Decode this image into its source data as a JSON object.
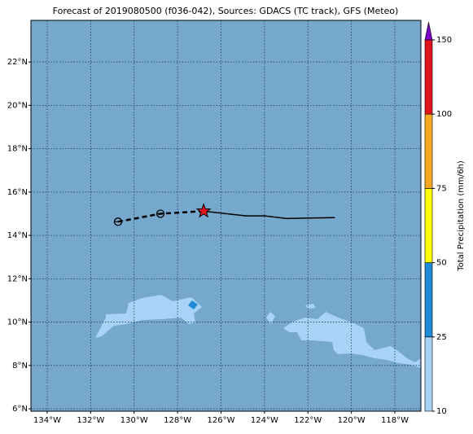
{
  "title": "Forecast of 2019080500 (f036-042), Sources: GDACS (TC track), GFS (Meteo)",
  "map": {
    "lonlim": [
      -134.75,
      -116.8
    ],
    "latlim": [
      5.89,
      23.92
    ],
    "background": "#76a7cd",
    "lonticks": [
      {
        "value": -134,
        "label": "134°W"
      },
      {
        "value": -132,
        "label": "132°W"
      },
      {
        "value": -130,
        "label": "130°W"
      },
      {
        "value": -128,
        "label": "128°W"
      },
      {
        "value": -126,
        "label": "126°W"
      },
      {
        "value": -124,
        "label": "124°W"
      },
      {
        "value": -122,
        "label": "122°W"
      },
      {
        "value": -120,
        "label": "120°W"
      },
      {
        "value": -118,
        "label": "118°W"
      }
    ],
    "latticks": [
      {
        "value": 6,
        "label": "6°N"
      },
      {
        "value": 8,
        "label": "8°N"
      },
      {
        "value": 10,
        "label": "10°N"
      },
      {
        "value": 12,
        "label": "12°N"
      },
      {
        "value": 14,
        "label": "14°N"
      },
      {
        "value": 16,
        "label": "16°N"
      },
      {
        "value": 18,
        "label": "18°N"
      },
      {
        "value": 20,
        "label": "20°N"
      },
      {
        "value": 22,
        "label": "22°N"
      }
    ]
  },
  "track": {
    "past": {
      "lon": [
        -130.74,
        -128.79,
        -126.8
      ],
      "lat": [
        14.63,
        15.0,
        15.12
      ]
    },
    "forecast": {
      "lon": [
        -126.8,
        -124.85,
        -123.99,
        -122.98,
        -120.76
      ],
      "lat": [
        15.12,
        14.9,
        14.9,
        14.78,
        14.82
      ]
    },
    "current": {
      "lon": -126.8,
      "lat": 15.12
    }
  },
  "colorbar": {
    "label": "Total Precipitation (mm/6h)",
    "ticks": [
      10,
      25,
      50,
      75,
      100,
      150
    ],
    "colors": [
      "#a8d3f7",
      "#1f8bd8",
      "#ffff00",
      "#f8a822",
      "#e0141c"
    ],
    "extend_color": "#7a00c8"
  }
}
